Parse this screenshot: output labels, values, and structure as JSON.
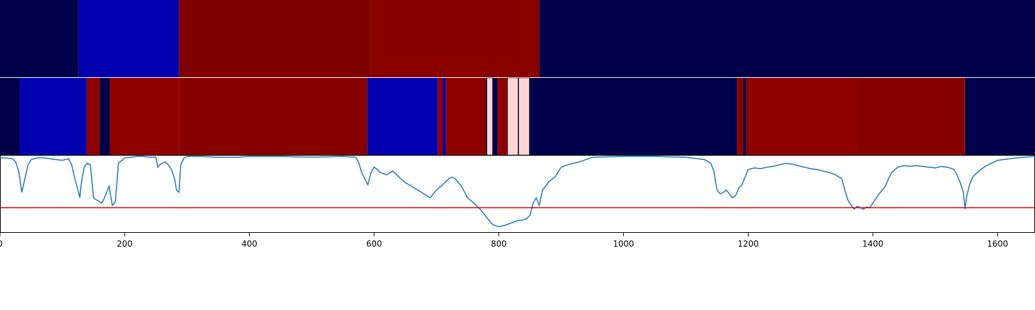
{
  "chart_data": {
    "type": "heatmap",
    "xlim": [
      0,
      1660
    ],
    "x_ticks": [
      {
        "value": 0,
        "label": "0"
      },
      {
        "value": 200,
        "label": "200"
      },
      {
        "value": 400,
        "label": "400"
      },
      {
        "value": 600,
        "label": "600"
      },
      {
        "value": 800,
        "label": "800"
      },
      {
        "value": 1000,
        "label": "1000"
      },
      {
        "value": 1200,
        "label": "1200"
      },
      {
        "value": 1400,
        "label": "1400"
      },
      {
        "value": 1600,
        "label": "1600"
      }
    ],
    "segment_tracks": [
      {
        "segments": [
          {
            "start": 0,
            "end": 126,
            "color": "#00004a"
          },
          {
            "start": 126,
            "end": 287,
            "color": "#0202b0"
          },
          {
            "start": 287,
            "end": 595,
            "color": "#7e0000"
          },
          {
            "start": 595,
            "end": 865,
            "color": "#8a0000"
          },
          {
            "start": 865,
            "end": 1660,
            "color": "#00004a"
          }
        ]
      },
      {
        "segments": [
          {
            "start": 0,
            "end": 32,
            "color": "#00004a"
          },
          {
            "start": 32,
            "end": 139,
            "color": "#0202b0"
          },
          {
            "start": 139,
            "end": 160,
            "color": "#8e0000"
          },
          {
            "start": 160,
            "end": 176,
            "color": "#00004a"
          },
          {
            "start": 176,
            "end": 287,
            "color": "#8e0000"
          },
          {
            "start": 287,
            "end": 589,
            "color": "#870000"
          },
          {
            "start": 589,
            "end": 702,
            "color": "#0202b0"
          },
          {
            "start": 702,
            "end": 710,
            "color": "#8e0000"
          },
          {
            "start": 710,
            "end": 715,
            "color": "#0202b0"
          },
          {
            "start": 715,
            "end": 779,
            "color": "#8e0000"
          },
          {
            "start": 779,
            "end": 781,
            "color": "#00004a"
          },
          {
            "start": 781,
            "end": 790,
            "color": "#ffd6d6"
          },
          {
            "start": 790,
            "end": 798,
            "color": "#00004a"
          },
          {
            "start": 798,
            "end": 814,
            "color": "#8e0000"
          },
          {
            "start": 814,
            "end": 831,
            "color": "#ffd6d6"
          },
          {
            "start": 831,
            "end": 832,
            "color": "#00004a"
          },
          {
            "start": 832,
            "end": 849,
            "color": "#ffd6d6"
          },
          {
            "start": 849,
            "end": 1182,
            "color": "#00004a"
          },
          {
            "start": 1182,
            "end": 1192,
            "color": "#8e0000"
          },
          {
            "start": 1192,
            "end": 1197,
            "color": "#00004a"
          },
          {
            "start": 1197,
            "end": 1375,
            "color": "#8e0000"
          },
          {
            "start": 1375,
            "end": 1548,
            "color": "#870000"
          },
          {
            "start": 1548,
            "end": 1660,
            "color": "#00004a"
          }
        ]
      }
    ],
    "line": {
      "color": "#1f77b4",
      "ylim": [
        0,
        1
      ],
      "x": [
        0,
        10,
        20,
        25,
        30,
        35,
        40,
        45,
        50,
        60,
        70,
        80,
        90,
        100,
        110,
        115,
        120,
        125,
        128,
        130,
        135,
        140,
        145,
        150,
        155,
        160,
        163,
        166,
        170,
        175,
        180,
        185,
        190,
        200,
        210,
        220,
        230,
        240,
        250,
        253,
        256,
        260,
        265,
        270,
        275,
        280,
        283,
        287,
        290,
        295,
        300,
        320,
        350,
        380,
        400,
        450,
        500,
        550,
        570,
        575,
        580,
        585,
        590,
        595,
        600,
        605,
        610,
        620,
        630,
        640,
        650,
        660,
        670,
        680,
        690,
        700,
        710,
        720,
        725,
        730,
        740,
        750,
        760,
        770,
        775,
        780,
        785,
        790,
        800,
        810,
        820,
        830,
        840,
        845,
        850,
        855,
        860,
        865,
        870,
        875,
        880,
        890,
        900,
        910,
        920,
        930,
        940,
        950,
        1000,
        1050,
        1100,
        1130,
        1140,
        1145,
        1148,
        1150,
        1155,
        1160,
        1165,
        1170,
        1175,
        1180,
        1185,
        1190,
        1195,
        1200,
        1210,
        1220,
        1230,
        1240,
        1250,
        1260,
        1270,
        1280,
        1290,
        1300,
        1310,
        1320,
        1330,
        1340,
        1350,
        1355,
        1360,
        1365,
        1370,
        1375,
        1380,
        1385,
        1390,
        1395,
        1400,
        1410,
        1420,
        1425,
        1430,
        1440,
        1450,
        1460,
        1470,
        1480,
        1490,
        1500,
        1510,
        1520,
        1530,
        1535,
        1540,
        1545,
        1548,
        1550,
        1555,
        1560,
        1570,
        1580,
        1590,
        1600,
        1620,
        1640,
        1660
      ],
      "y": [
        0.97,
        0.97,
        0.96,
        0.92,
        0.8,
        0.52,
        0.7,
        0.88,
        0.95,
        0.97,
        0.97,
        0.96,
        0.95,
        0.94,
        0.96,
        0.88,
        0.7,
        0.55,
        0.45,
        0.62,
        0.85,
        0.9,
        0.88,
        0.45,
        0.42,
        0.4,
        0.38,
        0.42,
        0.5,
        0.6,
        0.35,
        0.4,
        0.9,
        0.97,
        0.98,
        0.99,
        0.99,
        0.98,
        0.98,
        0.85,
        0.88,
        0.9,
        0.92,
        0.88,
        0.82,
        0.7,
        0.55,
        0.52,
        0.88,
        0.97,
        0.99,
        0.99,
        0.98,
        0.98,
        0.99,
        0.99,
        0.98,
        0.99,
        0.98,
        0.92,
        0.78,
        0.7,
        0.62,
        0.78,
        0.85,
        0.82,
        0.78,
        0.75,
        0.8,
        0.72,
        0.65,
        0.6,
        0.55,
        0.5,
        0.45,
        0.55,
        0.62,
        0.7,
        0.72,
        0.7,
        0.6,
        0.45,
        0.38,
        0.3,
        0.25,
        0.2,
        0.15,
        0.1,
        0.07,
        0.09,
        0.12,
        0.15,
        0.16,
        0.18,
        0.22,
        0.38,
        0.45,
        0.35,
        0.55,
        0.6,
        0.66,
        0.72,
        0.85,
        0.88,
        0.9,
        0.92,
        0.95,
        0.98,
        0.99,
        0.99,
        0.98,
        0.95,
        0.9,
        0.8,
        0.65,
        0.55,
        0.5,
        0.52,
        0.55,
        0.5,
        0.45,
        0.48,
        0.58,
        0.62,
        0.72,
        0.82,
        0.84,
        0.83,
        0.85,
        0.86,
        0.88,
        0.9,
        0.89,
        0.87,
        0.85,
        0.83,
        0.82,
        0.8,
        0.78,
        0.75,
        0.7,
        0.55,
        0.42,
        0.35,
        0.3,
        0.34,
        0.32,
        0.3,
        0.33,
        0.32,
        0.38,
        0.5,
        0.6,
        0.7,
        0.78,
        0.85,
        0.87,
        0.86,
        0.87,
        0.86,
        0.85,
        0.84,
        0.86,
        0.85,
        0.82,
        0.75,
        0.65,
        0.52,
        0.3,
        0.45,
        0.62,
        0.72,
        0.8,
        0.86,
        0.9,
        0.94,
        0.96,
        0.98,
        0.99
      ]
    },
    "threshold": {
      "value": 0.32,
      "color": "#e00000"
    }
  }
}
